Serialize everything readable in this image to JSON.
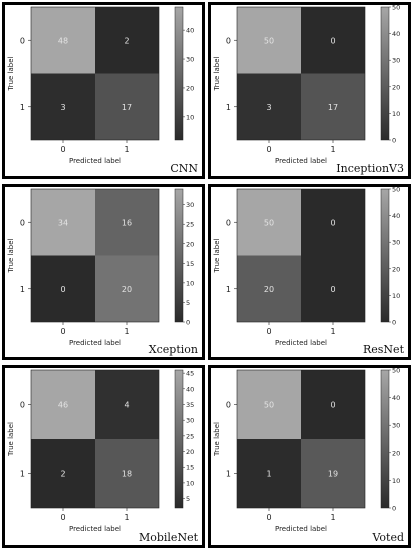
{
  "axis_text": {
    "ylabel": "True label",
    "xlabel": "Predicted label"
  },
  "chart_data": [
    {
      "type": "heatmap",
      "model": "CNN",
      "xlabel": "Predicted label",
      "ylabel": "True label",
      "x_tick_labels": [
        "0",
        "1"
      ],
      "y_tick_labels": [
        "0",
        "1"
      ],
      "matrix": [
        [
          48,
          2
        ],
        [
          3,
          17
        ]
      ],
      "colorbar_ticks": [
        10,
        20,
        30,
        40
      ],
      "vmin": 2,
      "vmax": 48,
      "colormap": "gray"
    },
    {
      "type": "heatmap",
      "model": "InceptionV3",
      "xlabel": "Predicted label",
      "ylabel": "True label",
      "x_tick_labels": [
        "0",
        "1"
      ],
      "y_tick_labels": [
        "0",
        "1"
      ],
      "matrix": [
        [
          50,
          0
        ],
        [
          3,
          17
        ]
      ],
      "colorbar_ticks": [
        0,
        10,
        20,
        30,
        40,
        50
      ],
      "vmin": 0,
      "vmax": 50,
      "colormap": "gray"
    },
    {
      "type": "heatmap",
      "model": "Xception",
      "xlabel": "Predicted label",
      "ylabel": "True label",
      "x_tick_labels": [
        "0",
        "1"
      ],
      "y_tick_labels": [
        "0",
        "1"
      ],
      "matrix": [
        [
          34,
          16
        ],
        [
          0,
          20
        ]
      ],
      "colorbar_ticks": [
        0,
        5,
        10,
        15,
        20,
        25,
        30
      ],
      "vmin": 0,
      "vmax": 34,
      "colormap": "gray"
    },
    {
      "type": "heatmap",
      "model": "ResNet",
      "xlabel": "Predicted label",
      "ylabel": "True label",
      "x_tick_labels": [
        "0",
        "1"
      ],
      "y_tick_labels": [
        "0",
        "1"
      ],
      "matrix": [
        [
          50,
          0
        ],
        [
          20,
          0
        ]
      ],
      "colorbar_ticks": [
        0,
        10,
        20,
        30,
        40,
        50
      ],
      "vmin": 0,
      "vmax": 50,
      "colormap": "gray"
    },
    {
      "type": "heatmap",
      "model": "MobileNet",
      "xlabel": "Predicted label",
      "ylabel": "True label",
      "x_tick_labels": [
        "0",
        "1"
      ],
      "y_tick_labels": [
        "0",
        "1"
      ],
      "matrix": [
        [
          46,
          4
        ],
        [
          2,
          18
        ]
      ],
      "colorbar_ticks": [
        5,
        10,
        15,
        20,
        25,
        30,
        35,
        40,
        45
      ],
      "vmin": 2,
      "vmax": 46,
      "colormap": "gray"
    },
    {
      "type": "heatmap",
      "model": "Voted",
      "xlabel": "Predicted label",
      "ylabel": "True label",
      "x_tick_labels": [
        "0",
        "1"
      ],
      "y_tick_labels": [
        "0",
        "1"
      ],
      "matrix": [
        [
          50,
          0
        ],
        [
          1,
          19
        ]
      ],
      "colorbar_ticks": [
        0,
        10,
        20,
        30,
        40,
        50
      ],
      "vmin": 0,
      "vmax": 50,
      "colormap": "gray"
    }
  ]
}
